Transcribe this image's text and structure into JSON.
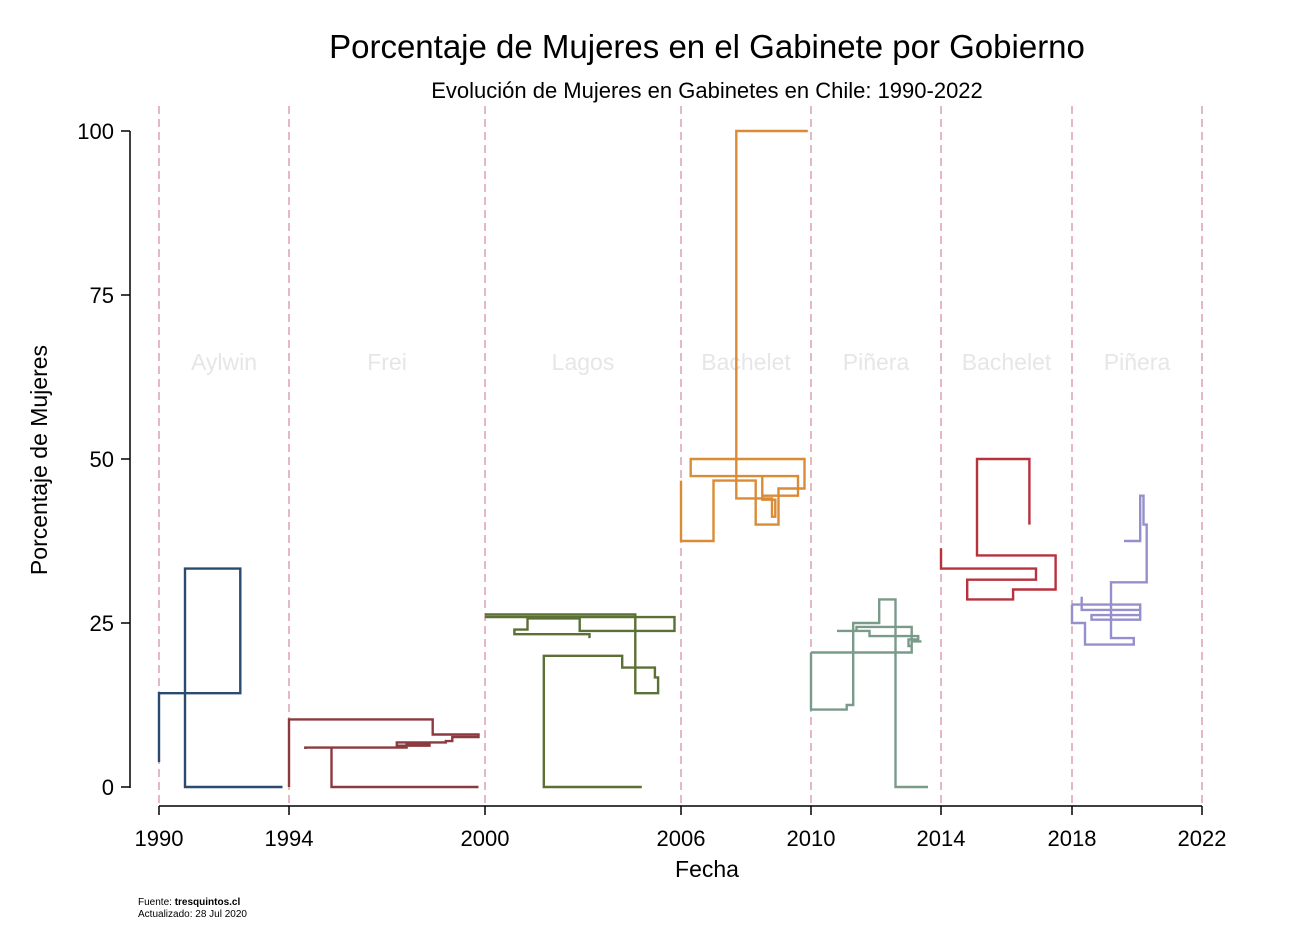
{
  "chart_data": {
    "type": "line",
    "title": "Porcentaje de Mujeres en el Gabinete por Gobierno",
    "subtitle": "Evolución de Mujeres en Gabinetes en Chile: 1990-2022",
    "xlabel": "Fecha",
    "ylabel": "Porcentaje de Mujeres",
    "xlim": [
      1990,
      2022
    ],
    "ylim": [
      0,
      100
    ],
    "x_ticks": [
      "1990",
      "1994",
      "2000",
      "2006",
      "2010",
      "2014",
      "2018",
      "2022"
    ],
    "y_ticks": [
      "0",
      "25",
      "50",
      "75",
      "100"
    ],
    "grid": false,
    "legend": "none",
    "governments": [
      {
        "label": "Aylwin",
        "start": 1990,
        "end": 1994
      },
      {
        "label": "Frei",
        "start": 1994,
        "end": 2000
      },
      {
        "label": "Lagos",
        "start": 2000,
        "end": 2006
      },
      {
        "label": "Bachelet",
        "start": 2006,
        "end": 2010
      },
      {
        "label": "Piñera",
        "start": 2010,
        "end": 2014
      },
      {
        "label": "Bachelet",
        "start": 2014,
        "end": 2018
      },
      {
        "label": "Piñera",
        "start": 2018,
        "end": 2022
      }
    ],
    "series": [
      {
        "color": "#2b4a6f",
        "points": [
          [
            1990.0,
            3.8
          ],
          [
            1990.0,
            14.3
          ],
          [
            1992.5,
            14.3
          ],
          [
            1992.5,
            33.3
          ],
          [
            1990.8,
            33.3
          ],
          [
            1990.8,
            0
          ],
          [
            1993.8,
            0
          ]
        ]
      },
      {
        "color": "#8b3a3f",
        "points": [
          [
            1994.0,
            0
          ],
          [
            1994.0,
            10.3
          ],
          [
            1998.4,
            10.3
          ],
          [
            1998.4,
            8.0
          ],
          [
            1999.8,
            8.0
          ],
          [
            1999.8,
            7.6
          ],
          [
            1999.0,
            7.6
          ],
          [
            1999.0,
            7.0
          ],
          [
            1998.8,
            7.0
          ],
          [
            1998.8,
            6.8
          ],
          [
            1997.3,
            6.8
          ],
          [
            1997.3,
            6.3
          ],
          [
            1998.3,
            6.3
          ],
          [
            1998.3,
            6.5
          ],
          [
            1997.6,
            6.5
          ],
          [
            1997.6,
            6.0
          ],
          [
            1994.5,
            6.0
          ],
          [
            1994.5,
            5.8
          ],
          [
            1994.5,
            6.0
          ],
          [
            1995.3,
            6.0
          ],
          [
            1995.3,
            0
          ],
          [
            1999.8,
            0
          ]
        ]
      },
      {
        "color": "#5b7035",
        "points": [
          [
            2000.0,
            26.3
          ],
          [
            2004.6,
            26.3
          ],
          [
            2004.6,
            14.3
          ],
          [
            2005.3,
            14.3
          ],
          [
            2005.3,
            16.7
          ],
          [
            2005.2,
            16.7
          ],
          [
            2005.2,
            18.2
          ],
          [
            2004.2,
            18.2
          ],
          [
            2004.2,
            20.0
          ],
          [
            2001.8,
            20.0
          ],
          [
            2001.8,
            0
          ],
          [
            2004.8,
            0
          ]
        ]
      },
      {
        "color": "#5b7035",
        "points": [
          [
            2000.0,
            25.9
          ],
          [
            2005.8,
            25.9
          ],
          [
            2005.8,
            23.8
          ],
          [
            2002.9,
            23.8
          ],
          [
            2002.9,
            25.7
          ],
          [
            2001.3,
            25.7
          ],
          [
            2001.3,
            24.0
          ],
          [
            2000.9,
            24.0
          ],
          [
            2000.9,
            23.3
          ],
          [
            2003.2,
            23.3
          ],
          [
            2003.2,
            22.7
          ]
        ]
      },
      {
        "color": "#da8b35",
        "points": [
          [
            2006.0,
            46.7
          ],
          [
            2006.0,
            37.5
          ],
          [
            2007.0,
            37.5
          ],
          [
            2007.0,
            46.7
          ],
          [
            2008.3,
            46.7
          ],
          [
            2008.3,
            40.0
          ],
          [
            2009.0,
            40.0
          ],
          [
            2009.0,
            45.5
          ],
          [
            2009.8,
            45.5
          ],
          [
            2009.8,
            50.0
          ],
          [
            2006.3,
            50.0
          ],
          [
            2006.3,
            47.4
          ],
          [
            2009.6,
            47.4
          ],
          [
            2009.6,
            44.4
          ],
          [
            2008.5,
            44.4
          ],
          [
            2008.5,
            47.4
          ],
          [
            2008.5,
            43.8
          ],
          [
            2008.9,
            43.8
          ],
          [
            2008.9,
            41.2
          ],
          [
            2008.8,
            41.2
          ],
          [
            2008.8,
            44.0
          ],
          [
            2007.7,
            44.0
          ],
          [
            2007.7,
            100
          ],
          [
            2009.9,
            100
          ]
        ]
      },
      {
        "color": "#7b9b8a",
        "points": [
          [
            2010.0,
            20.5
          ],
          [
            2010.0,
            11.8
          ],
          [
            2011.1,
            11.8
          ],
          [
            2011.1,
            12.5
          ],
          [
            2011.3,
            12.5
          ],
          [
            2011.3,
            25.0
          ],
          [
            2012.1,
            25.0
          ],
          [
            2012.1,
            28.6
          ],
          [
            2012.6,
            28.6
          ],
          [
            2012.6,
            0
          ],
          [
            2013.6,
            0
          ]
        ]
      },
      {
        "color": "#7b9b8a",
        "points": [
          [
            2010.0,
            20.5
          ],
          [
            2013.1,
            20.5
          ],
          [
            2013.1,
            24.4
          ],
          [
            2011.4,
            24.4
          ],
          [
            2011.4,
            23.8
          ],
          [
            2010.8,
            23.8
          ],
          [
            2011.8,
            23.8
          ],
          [
            2011.8,
            23.0
          ],
          [
            2013.3,
            23.0
          ],
          [
            2013.3,
            22.5
          ],
          [
            2013.0,
            22.5
          ],
          [
            2013.0,
            21.5
          ],
          [
            2013.1,
            21.5
          ],
          [
            2013.1,
            22.2
          ],
          [
            2013.4,
            22.2
          ]
        ]
      },
      {
        "color": "#b8323e",
        "points": [
          [
            2014.0,
            36.4
          ],
          [
            2014.0,
            33.3
          ],
          [
            2016.9,
            33.3
          ],
          [
            2016.9,
            31.6
          ],
          [
            2014.8,
            31.6
          ],
          [
            2014.8,
            28.6
          ],
          [
            2016.2,
            28.6
          ],
          [
            2016.2,
            30.1
          ],
          [
            2017.5,
            30.1
          ],
          [
            2017.5,
            35.3
          ],
          [
            2015.1,
            35.3
          ],
          [
            2015.1,
            50.0
          ],
          [
            2016.7,
            50.0
          ],
          [
            2016.7,
            40.0
          ]
        ]
      },
      {
        "color": "#9590cd",
        "points": [
          [
            2018.0,
            27.8
          ],
          [
            2018.0,
            25.0
          ],
          [
            2018.4,
            25.0
          ],
          [
            2018.4,
            21.7
          ],
          [
            2019.9,
            21.7
          ],
          [
            2019.9,
            22.7
          ],
          [
            2019.2,
            22.7
          ],
          [
            2019.2,
            31.2
          ],
          [
            2020.3,
            31.2
          ],
          [
            2020.3,
            40.0
          ],
          [
            2020.2,
            40.0
          ],
          [
            2020.2,
            44.4
          ],
          [
            2020.1,
            44.4
          ],
          [
            2020.1,
            37.5
          ],
          [
            2019.6,
            37.5
          ]
        ]
      },
      {
        "color": "#9590cd",
        "points": [
          [
            2018.0,
            27.8
          ],
          [
            2020.1,
            27.8
          ],
          [
            2020.1,
            25.5
          ],
          [
            2018.6,
            25.5
          ],
          [
            2018.6,
            26.2
          ],
          [
            2020.1,
            26.2
          ],
          [
            2020.1,
            27.0
          ],
          [
            2018.3,
            27.0
          ],
          [
            2018.3,
            29.0
          ]
        ]
      }
    ]
  },
  "footer": {
    "source_label": "Fuente:",
    "source_value": "tresquintos.cl",
    "updated": "Actualizado: 28 Jul 2020"
  }
}
